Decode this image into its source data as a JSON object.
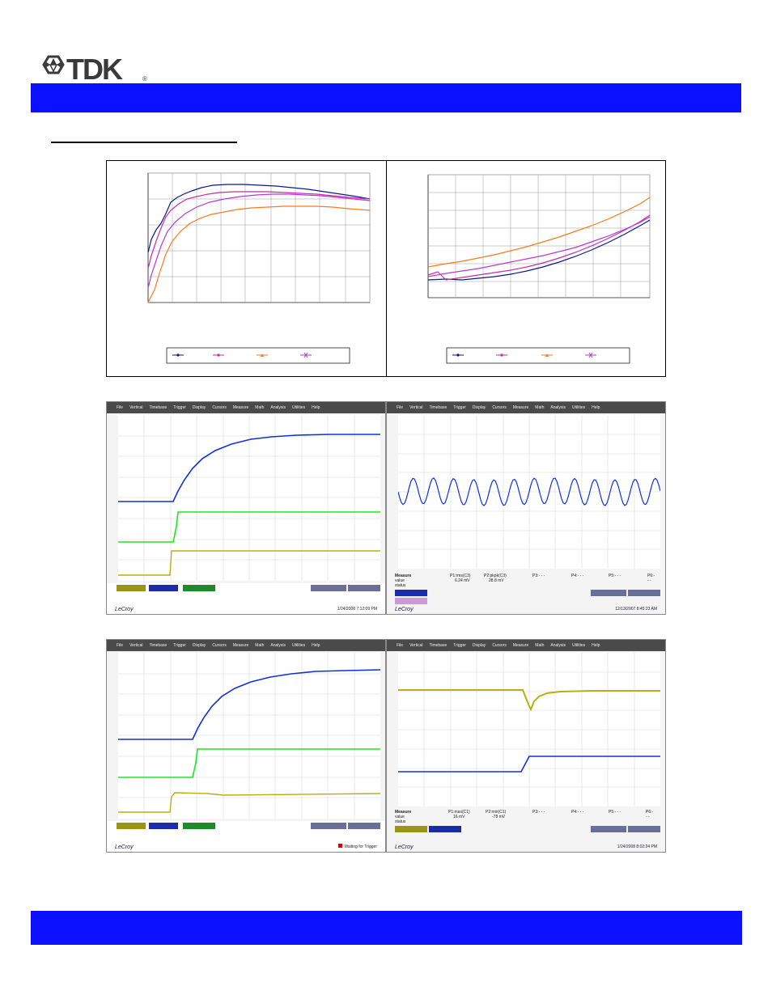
{
  "brand": {
    "logo_text": "TDK",
    "trademark": "®"
  },
  "colors": {
    "band": "#0b10ff",
    "navy": "#0a1a8c",
    "magenta": "#cc2aa8",
    "orange": "#ff7a1c",
    "violet": "#b53bd6",
    "trace_blue": "#1030e0",
    "trace_green": "#18e818",
    "trace_olive": "#b8b010"
  },
  "scope_menu": [
    "File",
    "Vertical",
    "Timebase",
    "Trigger",
    "Display",
    "Cursors",
    "Measure",
    "Math",
    "Analysis",
    "Utilities",
    "Help"
  ],
  "scopes": {
    "s1": {
      "timestamp": "1/24/2008 7:12:09 PM",
      "brand": "LeCroy"
    },
    "s2": {
      "timestamp": "12/13/2007 8:45:23 AM",
      "brand": "LeCroy",
      "measure": {
        "label": "Measure",
        "value_label": "value",
        "status_label": "status",
        "p1": "P1:rms(C3)",
        "p1_val": "6.24 mV",
        "p2": "P2:pkpk(C3)",
        "p2_val": "28.8 mV",
        "p3": "P3:- - -",
        "p4": "P4:- - -",
        "p5": "P5:- - -",
        "p6": "P6:- - -"
      }
    },
    "s3": {
      "timestamp": "",
      "brand": "LeCroy",
      "status": "Waiting for Trigger"
    },
    "s4": {
      "timestamp": "1/24/2008 8:02:24 PM",
      "brand": "LeCroy",
      "measure": {
        "label": "Measure",
        "value_label": "value",
        "status_label": "status",
        "p1": "P1:max(C1)",
        "p1_val": "16 mV",
        "p2": "P2:min(C1)",
        "p2_val": "-78 mV",
        "p3": "P3:- - -",
        "p4": "P4:- - -",
        "p5": "P5:- - -",
        "p6": "P6:- - -"
      }
    }
  }
}
